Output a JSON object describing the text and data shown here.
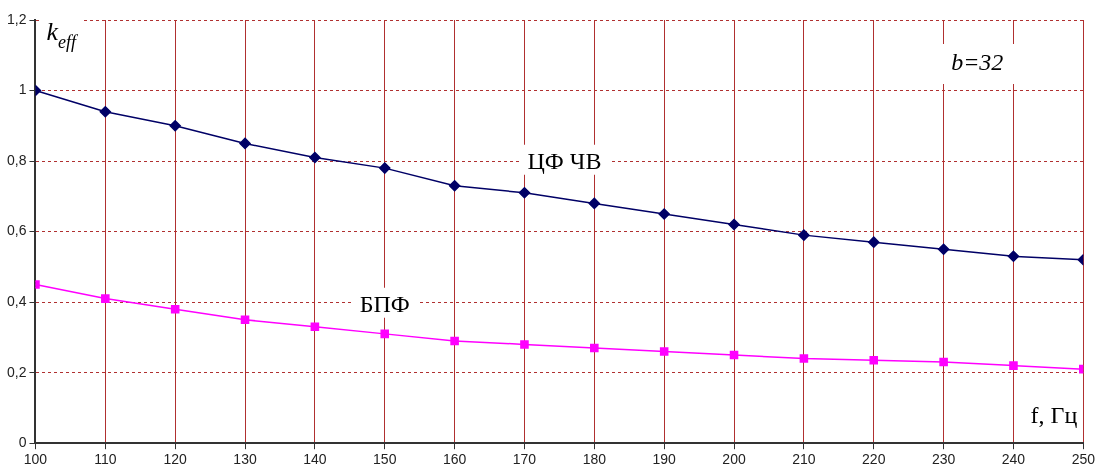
{
  "chart_data": {
    "type": "line",
    "xlabel": "f, Гц",
    "ylabel": "k$_{eff}$",
    "annotations": [
      "b=32"
    ],
    "x": [
      100,
      110,
      120,
      130,
      140,
      150,
      160,
      170,
      180,
      190,
      200,
      210,
      220,
      230,
      240,
      250
    ],
    "series": [
      {
        "name": "ЦФ ЧВ",
        "color": "#000066",
        "marker": "diamond",
        "values": [
          1.0,
          0.94,
          0.9,
          0.85,
          0.81,
          0.78,
          0.73,
          0.71,
          0.68,
          0.65,
          0.62,
          0.59,
          0.57,
          0.55,
          0.53,
          0.52
        ]
      },
      {
        "name": "БПФ",
        "color": "#ff00ff",
        "marker": "square",
        "values": [
          0.45,
          0.41,
          0.38,
          0.35,
          0.33,
          0.31,
          0.29,
          0.28,
          0.27,
          0.26,
          0.25,
          0.24,
          0.235,
          0.23,
          0.22,
          0.21
        ]
      }
    ],
    "xlim": [
      100,
      250
    ],
    "xticks": [
      100,
      110,
      120,
      130,
      140,
      150,
      160,
      170,
      180,
      190,
      200,
      210,
      220,
      230,
      240,
      250
    ],
    "ylim": [
      0,
      1.2
    ],
    "yticks": [
      0,
      {
        "value": 0.2,
        "label": "0,2"
      },
      {
        "value": 0.4,
        "label": "0,4"
      },
      {
        "value": 0.6,
        "label": "0,6"
      },
      {
        "value": 0.8,
        "label": "0,8"
      },
      1,
      {
        "value": 1.2,
        "label": "1,2"
      }
    ],
    "grid": true,
    "legend": false,
    "line_style": "solid"
  }
}
